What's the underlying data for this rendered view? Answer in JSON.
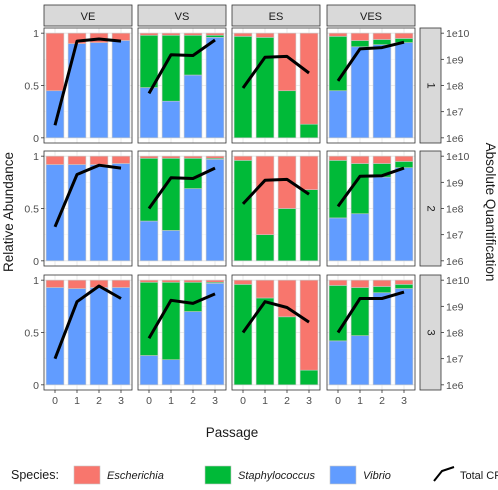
{
  "chart_data": {
    "type": "bar",
    "stacked": true,
    "facet_columns": [
      "VE",
      "VS",
      "ES",
      "VES"
    ],
    "facet_rows": [
      "1",
      "2",
      "3"
    ],
    "x": {
      "label": "Passage",
      "categories": [
        "0",
        "1",
        "2",
        "3"
      ]
    },
    "y_left": {
      "label": "Relative Abundance",
      "ylim": [
        0,
        1
      ],
      "ticks": [
        0,
        0.5,
        1
      ],
      "tick_labels": [
        "0",
        "0.5",
        "1"
      ]
    },
    "y_right": {
      "label": "Absolute Quantification",
      "scale": "log10",
      "ylim": [
        1000000,
        10000000000
      ],
      "ticks": [
        1000000,
        10000000,
        100000000,
        1000000000,
        10000000000
      ],
      "tick_labels": [
        "1e6",
        "1e7",
        "1e8",
        "1e9",
        "1e10"
      ]
    },
    "grid": true,
    "legend_position": "bottom",
    "legend": {
      "title": "Species:",
      "entries": [
        {
          "name": "Escherichia",
          "color": "#F8766D",
          "italic": true
        },
        {
          "name": "Staphylococcus",
          "color": "#00BA38",
          "italic": true
        },
        {
          "name": "Vibrio",
          "color": "#619CFF",
          "italic": true
        },
        {
          "name": "Total CFUs",
          "color": "#000000",
          "kind": "line"
        }
      ]
    },
    "panels": [
      {
        "col": "VE",
        "row": "1",
        "composition": [
          {
            "Escherichia": 0.55,
            "Staphylococcus": 0,
            "Vibrio": 0.45
          },
          {
            "Escherichia": 0.1,
            "Staphylococcus": 0,
            "Vibrio": 0.9
          },
          {
            "Escherichia": 0.09,
            "Staphylococcus": 0,
            "Vibrio": 0.91
          },
          {
            "Escherichia": 0.07,
            "Staphylococcus": 0,
            "Vibrio": 0.93
          }
        ],
        "total_cfus": [
          3000000,
          5000000000,
          6000000000,
          5000000000
        ]
      },
      {
        "col": "VS",
        "row": "1",
        "composition": [
          {
            "Escherichia": 0.02,
            "Staphylococcus": 0.5,
            "Vibrio": 0.48
          },
          {
            "Escherichia": 0.02,
            "Staphylococcus": 0.63,
            "Vibrio": 0.35
          },
          {
            "Escherichia": 0.02,
            "Staphylococcus": 0.38,
            "Vibrio": 0.6
          },
          {
            "Escherichia": 0.02,
            "Staphylococcus": 0.02,
            "Vibrio": 0.96
          }
        ],
        "total_cfus": [
          50000000,
          1500000000,
          1400000000,
          5500000000
        ]
      },
      {
        "col": "ES",
        "row": "1",
        "composition": [
          {
            "Escherichia": 0.03,
            "Staphylococcus": 0.97,
            "Vibrio": 0
          },
          {
            "Escherichia": 0.04,
            "Staphylococcus": 0.96,
            "Vibrio": 0
          },
          {
            "Escherichia": 0.55,
            "Staphylococcus": 0.45,
            "Vibrio": 0
          },
          {
            "Escherichia": 0.87,
            "Staphylococcus": 0.13,
            "Vibrio": 0
          }
        ],
        "total_cfus": [
          80000000,
          1200000000,
          1300000000,
          300000000
        ]
      },
      {
        "col": "VES",
        "row": "1",
        "composition": [
          {
            "Escherichia": 0.03,
            "Staphylococcus": 0.52,
            "Vibrio": 0.45
          },
          {
            "Escherichia": 0.07,
            "Staphylococcus": 0.06,
            "Vibrio": 0.87
          },
          {
            "Escherichia": 0.06,
            "Staphylococcus": 0.05,
            "Vibrio": 0.89
          },
          {
            "Escherichia": 0.05,
            "Staphylococcus": 0.04,
            "Vibrio": 0.91
          }
        ],
        "total_cfus": [
          150000000,
          2500000000,
          2800000000,
          4500000000
        ]
      },
      {
        "col": "VE",
        "row": "2",
        "composition": [
          {
            "Escherichia": 0.08,
            "Staphylococcus": 0,
            "Vibrio": 0.92
          },
          {
            "Escherichia": 0.08,
            "Staphylococcus": 0,
            "Vibrio": 0.92
          },
          {
            "Escherichia": 0.08,
            "Staphylococcus": 0,
            "Vibrio": 0.92
          },
          {
            "Escherichia": 0.07,
            "Staphylococcus": 0,
            "Vibrio": 0.93
          }
        ],
        "total_cfus": [
          20000000,
          2000000000,
          4500000000,
          3500000000
        ]
      },
      {
        "col": "VS",
        "row": "2",
        "composition": [
          {
            "Escherichia": 0.02,
            "Staphylococcus": 0.6,
            "Vibrio": 0.38
          },
          {
            "Escherichia": 0.02,
            "Staphylococcus": 0.69,
            "Vibrio": 0.29
          },
          {
            "Escherichia": 0.02,
            "Staphylococcus": 0.29,
            "Vibrio": 0.69
          },
          {
            "Escherichia": 0.02,
            "Staphylococcus": 0.01,
            "Vibrio": 0.97
          }
        ],
        "total_cfus": [
          100000000,
          1500000000,
          1400000000,
          3500000000
        ]
      },
      {
        "col": "ES",
        "row": "2",
        "composition": [
          {
            "Escherichia": 0.04,
            "Staphylococcus": 0.96,
            "Vibrio": 0
          },
          {
            "Escherichia": 0.75,
            "Staphylococcus": 0.25,
            "Vibrio": 0
          },
          {
            "Escherichia": 0.5,
            "Staphylococcus": 0.5,
            "Vibrio": 0
          },
          {
            "Escherichia": 0.32,
            "Staphylococcus": 0.68,
            "Vibrio": 0
          }
        ],
        "total_cfus": [
          150000000,
          1200000000,
          1300000000,
          350000000
        ]
      },
      {
        "col": "VES",
        "row": "2",
        "composition": [
          {
            "Escherichia": 0.04,
            "Staphylococcus": 0.55,
            "Vibrio": 0.41
          },
          {
            "Escherichia": 0.07,
            "Staphylococcus": 0.48,
            "Vibrio": 0.45
          },
          {
            "Escherichia": 0.07,
            "Staphylococcus": 0.13,
            "Vibrio": 0.8
          },
          {
            "Escherichia": 0.05,
            "Staphylococcus": 0.06,
            "Vibrio": 0.89
          }
        ],
        "total_cfus": [
          120000000,
          1700000000,
          1800000000,
          3500000000
        ]
      },
      {
        "col": "VE",
        "row": "3",
        "composition": [
          {
            "Escherichia": 0.07,
            "Staphylococcus": 0,
            "Vibrio": 0.93
          },
          {
            "Escherichia": 0.08,
            "Staphylococcus": 0,
            "Vibrio": 0.92
          },
          {
            "Escherichia": 0.07,
            "Staphylococcus": 0,
            "Vibrio": 0.93
          },
          {
            "Escherichia": 0.07,
            "Staphylococcus": 0,
            "Vibrio": 0.93
          }
        ],
        "total_cfus": [
          10000000,
          1500000000,
          6000000000,
          2000000000
        ]
      },
      {
        "col": "VS",
        "row": "3",
        "composition": [
          {
            "Escherichia": 0.02,
            "Staphylococcus": 0.7,
            "Vibrio": 0.28
          },
          {
            "Escherichia": 0.02,
            "Staphylococcus": 0.74,
            "Vibrio": 0.24
          },
          {
            "Escherichia": 0.02,
            "Staphylococcus": 0.28,
            "Vibrio": 0.7
          },
          {
            "Escherichia": 0.02,
            "Staphylococcus": 0.01,
            "Vibrio": 0.97
          }
        ],
        "total_cfus": [
          60000000,
          1700000000,
          1300000000,
          3000000000
        ]
      },
      {
        "col": "ES",
        "row": "3",
        "composition": [
          {
            "Escherichia": 0.04,
            "Staphylococcus": 0.96,
            "Vibrio": 0
          },
          {
            "Escherichia": 0.17,
            "Staphylococcus": 0.83,
            "Vibrio": 0
          },
          {
            "Escherichia": 0.35,
            "Staphylococcus": 0.65,
            "Vibrio": 0
          },
          {
            "Escherichia": 0.86,
            "Staphylococcus": 0.14,
            "Vibrio": 0
          }
        ],
        "total_cfus": [
          100000000,
          1500000000,
          900000000,
          250000000
        ]
      },
      {
        "col": "VES",
        "row": "3",
        "composition": [
          {
            "Escherichia": 0.05,
            "Staphylococcus": 0.53,
            "Vibrio": 0.42
          },
          {
            "Escherichia": 0.07,
            "Staphylococcus": 0.46,
            "Vibrio": 0.47
          },
          {
            "Escherichia": 0.06,
            "Staphylococcus": 0.06,
            "Vibrio": 0.88
          },
          {
            "Escherichia": 0.04,
            "Staphylococcus": 0.04,
            "Vibrio": 0.92
          }
        ],
        "total_cfus": [
          100000000,
          2000000000,
          2000000000,
          3500000000
        ]
      }
    ]
  }
}
